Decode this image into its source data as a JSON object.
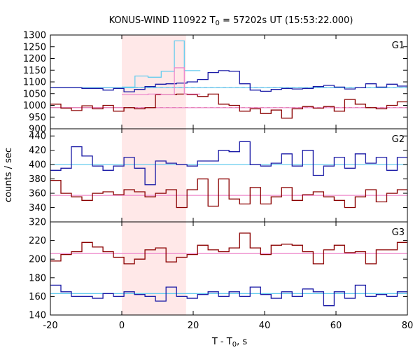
{
  "chart_data": {
    "type": "line",
    "title_main": "KONUS-WIND 110922 T",
    "title_sub": "0",
    "title_rest": " = 57202s UT (15:53:22.000)",
    "xlabel_main": "T - T",
    "xlabel_sub": "0",
    "xlabel_rest": ", s",
    "ylabel": "counts / sec",
    "xlim": [
      -20,
      80
    ],
    "x_ticks": [
      "-20",
      "0",
      "20",
      "40",
      "60",
      "80"
    ],
    "highlight_interval": [
      0,
      18
    ],
    "colors": {
      "highlight": "#ffe8e8",
      "blue": "#1a1aa6",
      "red": "#8b0000",
      "cyan": "#66ccee",
      "pink": "#ee88cc"
    },
    "panels": [
      {
        "label": "G1",
        "ylim": [
          900,
          1300
        ],
        "y_ticks": [
          "900",
          "950",
          "1000",
          "1050",
          "1100",
          "1150",
          "1200",
          "1250",
          "1300"
        ],
        "series": [
          {
            "color_key": "blue",
            "step": 2.944,
            "start": -20,
            "values": [
              1075,
              1075,
              1075,
              1072,
              1072,
              1065,
              1072,
              1058,
              1068,
              1080,
              1090,
              1092,
              1095,
              1100,
              1110,
              1140,
              1148,
              1145,
              1092,
              1065,
              1060,
              1068,
              1072,
              1070,
              1072,
              1080,
              1085,
              1078,
              1070,
              1075,
              1092,
              1078,
              1090,
              1082,
              1070
            ]
          },
          {
            "color_key": "red",
            "step": 2.944,
            "start": -20,
            "values": [
              1005,
              988,
              978,
              998,
              985,
              1000,
              975,
              990,
              985,
              990,
              1045,
              1045,
              1048,
              1045,
              1038,
              1048,
              1005,
              1000,
              975,
              985,
              965,
              980,
              945,
              985,
              995,
              988,
              995,
              975,
              1025,
              1005,
              990,
              985,
              1000,
              1015,
              980
            ]
          },
          {
            "color_key": "cyan",
            "step_list": [
              [
                0,
                3.68,
                1078
              ],
              [
                3.68,
                7.36,
                1125
              ],
              [
                7.36,
                11.04,
                1120
              ],
              [
                11.04,
                14.72,
                1145
              ],
              [
                14.72,
                17.5,
                1275
              ],
              [
                17.5,
                22.0,
                1148
              ]
            ]
          },
          {
            "color_key": "pink",
            "step_list": [
              [
                0,
                3.68,
                1045
              ],
              [
                3.68,
                7.36,
                1045
              ],
              [
                7.36,
                11.04,
                1048
              ],
              [
                11.04,
                14.72,
                1045
              ],
              [
                14.72,
                17.5,
                1160
              ],
              [
                17.5,
                22.0,
                1048
              ]
            ]
          }
        ],
        "backgrounds": [
          {
            "color_key": "blue",
            "value": 1075,
            "dashed_from": 0,
            "dashed_to": 80
          },
          {
            "color_key": "red",
            "value": 990,
            "dashed_from": 0,
            "dashed_to": 80
          },
          {
            "color_key": "cyan",
            "value": 1075,
            "dashed_from": null,
            "dashed_to": null
          },
          {
            "color_key": "pink",
            "value": 990,
            "dashed_from": null,
            "dashed_to": null
          }
        ]
      },
      {
        "label": "G2",
        "ylim": [
          320,
          450
        ],
        "y_ticks": [
          "320",
          "340",
          "360",
          "380",
          "400",
          "420",
          "440"
        ],
        "series": [
          {
            "color_key": "blue",
            "step": 2.944,
            "start": -20,
            "values": [
              392,
              395,
              425,
              412,
              398,
              392,
              398,
              410,
              395,
              372,
              405,
              402,
              400,
              398,
              405,
              405,
              420,
              418,
              432,
              400,
              398,
              402,
              415,
              398,
              420,
              385,
              398,
              410,
              395,
              415,
              402,
              410,
              392,
              410,
              405,
              396,
              400,
              388
            ]
          },
          {
            "color_key": "red",
            "step": 2.944,
            "start": -20,
            "values": [
              378,
              360,
              355,
              350,
              360,
              362,
              358,
              365,
              362,
              355,
              360,
              365,
              340,
              365,
              380,
              342,
              380,
              352,
              345,
              368,
              345,
              355,
              368,
              350,
              358,
              362,
              355,
              350,
              340,
              355,
              365,
              348,
              360,
              365,
              350,
              362,
              355,
              358
            ]
          }
        ],
        "backgrounds": [
          {
            "color_key": "cyan",
            "value": 400,
            "dashed_from": null,
            "dashed_to": null
          },
          {
            "color_key": "pink",
            "value": 357,
            "dashed_from": null,
            "dashed_to": null
          }
        ]
      },
      {
        "label": "G3",
        "ylim": [
          140,
          240
        ],
        "y_ticks": [
          "140",
          "160",
          "180",
          "200",
          "220"
        ],
        "series": [
          {
            "color_key": "red",
            "step": 2.944,
            "start": -20,
            "values": [
              198,
              205,
              208,
              218,
              213,
              208,
              202,
              195,
              200,
              210,
              212,
              197,
              202,
              205,
              215,
              210,
              208,
              212,
              228,
              212,
              205,
              215,
              216,
              215,
              208,
              195,
              210,
              215,
              207,
              208,
              195,
              210,
              210,
              218,
              210,
              195,
              212,
              205
            ]
          },
          {
            "color_key": "blue",
            "step": 2.944,
            "start": -20,
            "values": [
              172,
              165,
              160,
              160,
              158,
              163,
              160,
              165,
              162,
              160,
              155,
              170,
              160,
              158,
              162,
              165,
              160,
              165,
              160,
              170,
              162,
              158,
              165,
              160,
              168,
              165,
              150,
              165,
              158,
              172,
              160,
              162,
              160,
              165,
              170,
              158,
              178,
              158
            ]
          }
        ],
        "backgrounds": [
          {
            "color_key": "pink",
            "value": 206,
            "dashed_from": null,
            "dashed_to": null
          },
          {
            "color_key": "cyan",
            "value": 163,
            "dashed_from": null,
            "dashed_to": null
          }
        ]
      }
    ]
  }
}
